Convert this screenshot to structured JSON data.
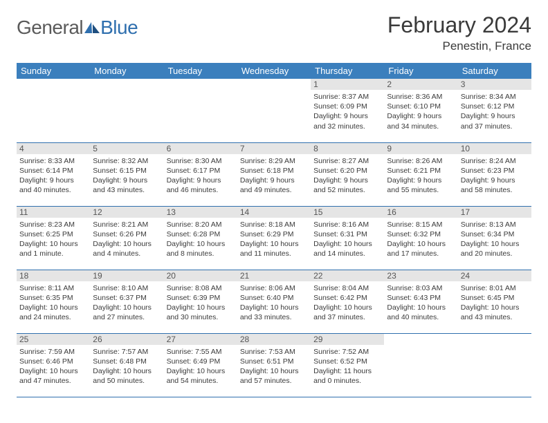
{
  "logo": {
    "textA": "General",
    "textB": "Blue"
  },
  "title": "February 2024",
  "location": "Penestin, France",
  "colors": {
    "header_bg": "#3b7fbd",
    "header_fg": "#ffffff",
    "rule": "#2f6fae",
    "daynum_bg": "#e5e5e5",
    "text": "#3a3a3a",
    "logo_gray": "#5a5a5a",
    "logo_blue": "#2f6fae"
  },
  "typography": {
    "title_fontsize": 32,
    "location_fontsize": 17,
    "header_fontsize": 13,
    "body_fontsize": 10.5
  },
  "layout": {
    "cols": 7,
    "rows": 5,
    "first_weekday_index": 4
  },
  "weekdays": [
    "Sunday",
    "Monday",
    "Tuesday",
    "Wednesday",
    "Thursday",
    "Friday",
    "Saturday"
  ],
  "days": [
    {
      "n": 1,
      "sunrise": "8:37 AM",
      "sunset": "6:09 PM",
      "daylight": "9 hours and 32 minutes."
    },
    {
      "n": 2,
      "sunrise": "8:36 AM",
      "sunset": "6:10 PM",
      "daylight": "9 hours and 34 minutes."
    },
    {
      "n": 3,
      "sunrise": "8:34 AM",
      "sunset": "6:12 PM",
      "daylight": "9 hours and 37 minutes."
    },
    {
      "n": 4,
      "sunrise": "8:33 AM",
      "sunset": "6:14 PM",
      "daylight": "9 hours and 40 minutes."
    },
    {
      "n": 5,
      "sunrise": "8:32 AM",
      "sunset": "6:15 PM",
      "daylight": "9 hours and 43 minutes."
    },
    {
      "n": 6,
      "sunrise": "8:30 AM",
      "sunset": "6:17 PM",
      "daylight": "9 hours and 46 minutes."
    },
    {
      "n": 7,
      "sunrise": "8:29 AM",
      "sunset": "6:18 PM",
      "daylight": "9 hours and 49 minutes."
    },
    {
      "n": 8,
      "sunrise": "8:27 AM",
      "sunset": "6:20 PM",
      "daylight": "9 hours and 52 minutes."
    },
    {
      "n": 9,
      "sunrise": "8:26 AM",
      "sunset": "6:21 PM",
      "daylight": "9 hours and 55 minutes."
    },
    {
      "n": 10,
      "sunrise": "8:24 AM",
      "sunset": "6:23 PM",
      "daylight": "9 hours and 58 minutes."
    },
    {
      "n": 11,
      "sunrise": "8:23 AM",
      "sunset": "6:25 PM",
      "daylight": "10 hours and 1 minute."
    },
    {
      "n": 12,
      "sunrise": "8:21 AM",
      "sunset": "6:26 PM",
      "daylight": "10 hours and 4 minutes."
    },
    {
      "n": 13,
      "sunrise": "8:20 AM",
      "sunset": "6:28 PM",
      "daylight": "10 hours and 8 minutes."
    },
    {
      "n": 14,
      "sunrise": "8:18 AM",
      "sunset": "6:29 PM",
      "daylight": "10 hours and 11 minutes."
    },
    {
      "n": 15,
      "sunrise": "8:16 AM",
      "sunset": "6:31 PM",
      "daylight": "10 hours and 14 minutes."
    },
    {
      "n": 16,
      "sunrise": "8:15 AM",
      "sunset": "6:32 PM",
      "daylight": "10 hours and 17 minutes."
    },
    {
      "n": 17,
      "sunrise": "8:13 AM",
      "sunset": "6:34 PM",
      "daylight": "10 hours and 20 minutes."
    },
    {
      "n": 18,
      "sunrise": "8:11 AM",
      "sunset": "6:35 PM",
      "daylight": "10 hours and 24 minutes."
    },
    {
      "n": 19,
      "sunrise": "8:10 AM",
      "sunset": "6:37 PM",
      "daylight": "10 hours and 27 minutes."
    },
    {
      "n": 20,
      "sunrise": "8:08 AM",
      "sunset": "6:39 PM",
      "daylight": "10 hours and 30 minutes."
    },
    {
      "n": 21,
      "sunrise": "8:06 AM",
      "sunset": "6:40 PM",
      "daylight": "10 hours and 33 minutes."
    },
    {
      "n": 22,
      "sunrise": "8:04 AM",
      "sunset": "6:42 PM",
      "daylight": "10 hours and 37 minutes."
    },
    {
      "n": 23,
      "sunrise": "8:03 AM",
      "sunset": "6:43 PM",
      "daylight": "10 hours and 40 minutes."
    },
    {
      "n": 24,
      "sunrise": "8:01 AM",
      "sunset": "6:45 PM",
      "daylight": "10 hours and 43 minutes."
    },
    {
      "n": 25,
      "sunrise": "7:59 AM",
      "sunset": "6:46 PM",
      "daylight": "10 hours and 47 minutes."
    },
    {
      "n": 26,
      "sunrise": "7:57 AM",
      "sunset": "6:48 PM",
      "daylight": "10 hours and 50 minutes."
    },
    {
      "n": 27,
      "sunrise": "7:55 AM",
      "sunset": "6:49 PM",
      "daylight": "10 hours and 54 minutes."
    },
    {
      "n": 28,
      "sunrise": "7:53 AM",
      "sunset": "6:51 PM",
      "daylight": "10 hours and 57 minutes."
    },
    {
      "n": 29,
      "sunrise": "7:52 AM",
      "sunset": "6:52 PM",
      "daylight": "11 hours and 0 minutes."
    }
  ],
  "labels": {
    "sunrise": "Sunrise:",
    "sunset": "Sunset:",
    "daylight": "Daylight:"
  }
}
